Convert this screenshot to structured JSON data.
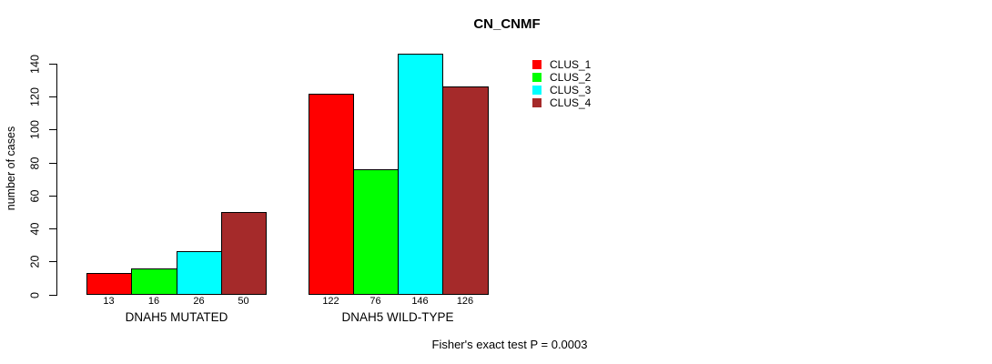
{
  "chart_data": {
    "type": "bar",
    "title": "CN_CNMF",
    "xlabel": "",
    "ylabel": "number of cases",
    "ylim": [
      0,
      140
    ],
    "yticks": [
      0,
      20,
      40,
      60,
      80,
      100,
      120,
      140
    ],
    "grid": false,
    "legend_position": "top-right",
    "show_values_under_bars": true,
    "categories": [
      "DNAH5 MUTATED",
      "DNAH5 WILD-TYPE"
    ],
    "series": [
      {
        "name": "CLUS_1",
        "color": "#ff0000",
        "values": [
          13,
          122
        ]
      },
      {
        "name": "CLUS_2",
        "color": "#00ff00",
        "values": [
          16,
          76
        ]
      },
      {
        "name": "CLUS_3",
        "color": "#00ffff",
        "values": [
          26,
          146
        ]
      },
      {
        "name": "CLUS_4",
        "color": "#a52a2a",
        "values": [
          50,
          126
        ]
      }
    ],
    "annotation": "Fisher's exact test P = 0.0003",
    "colors": {
      "bar_border": "#000000",
      "axis": "#000000",
      "text": "#000000",
      "background": "#ffffff"
    }
  }
}
